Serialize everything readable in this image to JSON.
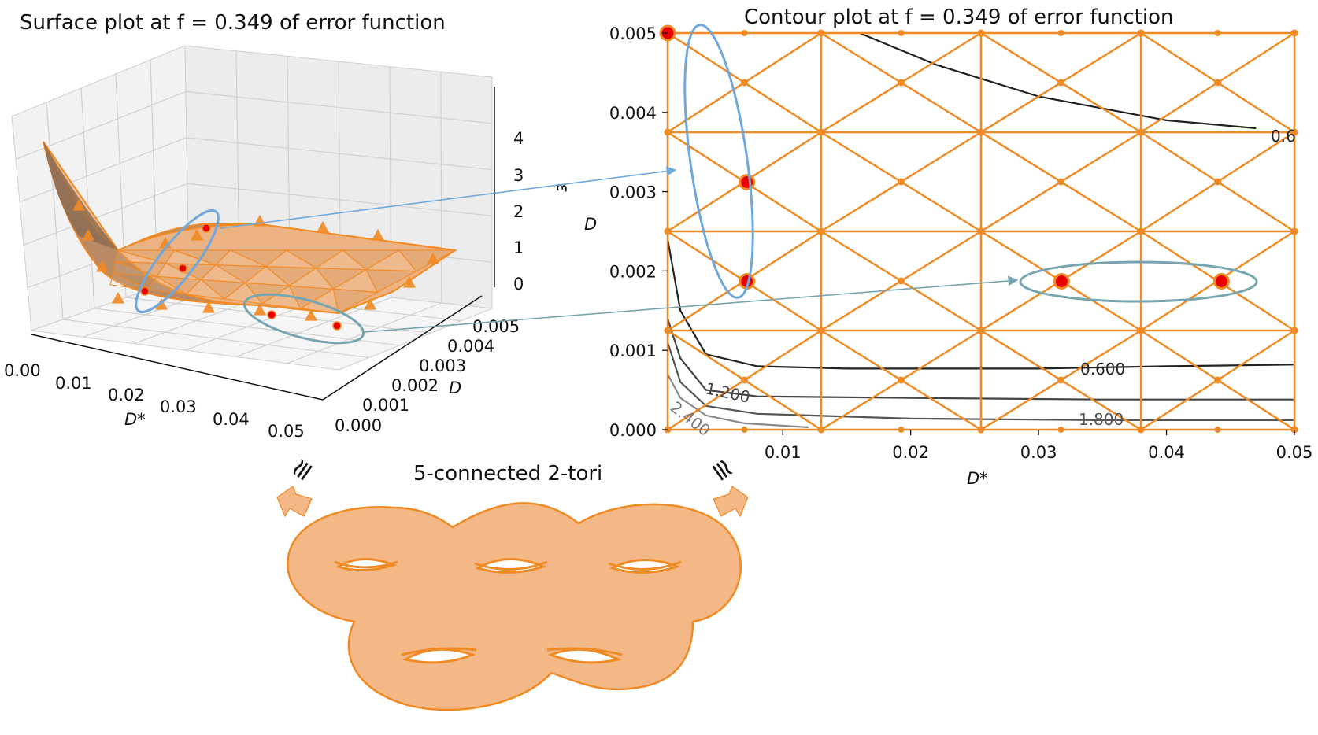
{
  "surface": {
    "title": "Surface plot at f = 0.349 of error function",
    "x_label": "D*",
    "y_label": "D",
    "z_label": "ε",
    "x_ticks": [
      "0.00",
      "0.01",
      "0.02",
      "0.03",
      "0.04",
      "0.05"
    ],
    "y_ticks": [
      "0.000",
      "0.001",
      "0.002",
      "0.003",
      "0.004",
      "0.005"
    ],
    "z_ticks": [
      "0",
      "1",
      "2",
      "3",
      "4"
    ]
  },
  "contour": {
    "title": "Contour plot at f = 0.349 of error function",
    "x_label": "D*",
    "y_label": "D",
    "x_ticks": [
      "0.01",
      "0.02",
      "0.03",
      "0.04",
      "0.05"
    ],
    "y_ticks": [
      "0.000",
      "0.001",
      "0.002",
      "0.003",
      "0.004",
      "0.005"
    ],
    "level_labels": [
      "0.6",
      "0.600",
      "1.200",
      "1.800",
      "2.400"
    ]
  },
  "torus": {
    "caption": "5-connected 2-tori",
    "left_symbol": "≅",
    "right_symbol": "≅"
  },
  "colors": {
    "mesh": "#f08a24",
    "mesh_fill": "#f4b886",
    "point": "#e60000",
    "ellipse_blue": "#6fa8dc",
    "ellipse_teal": "#76a5af",
    "contour_dark": "#222222",
    "contour_mid": "#555555",
    "contour_light": "#888888"
  },
  "chart_data": [
    {
      "type": "surface",
      "title": "Surface plot at f = 0.349 of error function",
      "xlabel": "D*",
      "ylabel": "D",
      "zlabel": "ε",
      "xlim": [
        0.0,
        0.05
      ],
      "ylim": [
        0.0,
        0.005
      ],
      "zlim": [
        0,
        4
      ],
      "grid": true,
      "highlighted_points": [
        {
          "x": 0.001,
          "y": 0.005
        },
        {
          "x": 0.007,
          "y": 0.003
        },
        {
          "x": 0.007,
          "y": 0.002
        },
        {
          "x": 0.032,
          "y": 0.002
        },
        {
          "x": 0.044,
          "y": 0.002
        }
      ]
    },
    {
      "type": "contour",
      "title": "Contour plot at f = 0.349 of error function",
      "xlabel": "D*",
      "ylabel": "D",
      "xlim": [
        0.001,
        0.05
      ],
      "ylim": [
        0.0,
        0.005
      ],
      "grid_lines_x": [
        0.001,
        0.013,
        0.0255,
        0.038,
        0.05
      ],
      "grid_lines_y": [
        0.0,
        0.00125,
        0.0025,
        0.00375,
        0.005
      ],
      "levels": [
        0.6,
        1.2,
        1.8,
        2.4
      ],
      "highlighted_points": [
        {
          "x": 0.001,
          "y": 0.005
        },
        {
          "x": 0.0072,
          "y": 0.00312
        },
        {
          "x": 0.0072,
          "y": 0.00187
        },
        {
          "x": 0.0318,
          "y": 0.00187
        },
        {
          "x": 0.0443,
          "y": 0.00187
        }
      ],
      "contours": [
        {
          "level": 0.6,
          "points": [
            [
              0.016,
              0.005
            ],
            [
              0.022,
              0.0046
            ],
            [
              0.03,
              0.0042
            ],
            [
              0.04,
              0.0039
            ],
            [
              0.047,
              0.0038
            ]
          ]
        },
        {
          "level": 0.6,
          "points": [
            [
              0.001,
              0.0024
            ],
            [
              0.002,
              0.0015
            ],
            [
              0.004,
              0.00095
            ],
            [
              0.008,
              0.0008
            ],
            [
              0.015,
              0.00077
            ],
            [
              0.03,
              0.00077
            ],
            [
              0.04,
              0.0008
            ],
            [
              0.05,
              0.00082
            ]
          ]
        },
        {
          "level": 1.2,
          "points": [
            [
              0.001,
              0.0014
            ],
            [
              0.002,
              0.0009
            ],
            [
              0.004,
              0.0005
            ],
            [
              0.008,
              0.00042
            ],
            [
              0.02,
              0.0004
            ],
            [
              0.035,
              0.00038
            ],
            [
              0.05,
              0.00038
            ]
          ]
        },
        {
          "level": 1.8,
          "points": [
            [
              0.001,
              0.0011
            ],
            [
              0.002,
              0.0006
            ],
            [
              0.004,
              0.0003
            ],
            [
              0.008,
              0.0002
            ],
            [
              0.02,
              0.00014
            ],
            [
              0.035,
              0.00012
            ],
            [
              0.05,
              0.00012
            ]
          ]
        },
        {
          "level": 2.4,
          "points": [
            [
              0.001,
              0.0007
            ],
            [
              0.002,
              0.0004
            ],
            [
              0.004,
              0.00018
            ],
            [
              0.007,
              8e-05
            ],
            [
              0.012,
              3e-05
            ]
          ]
        }
      ]
    }
  ]
}
